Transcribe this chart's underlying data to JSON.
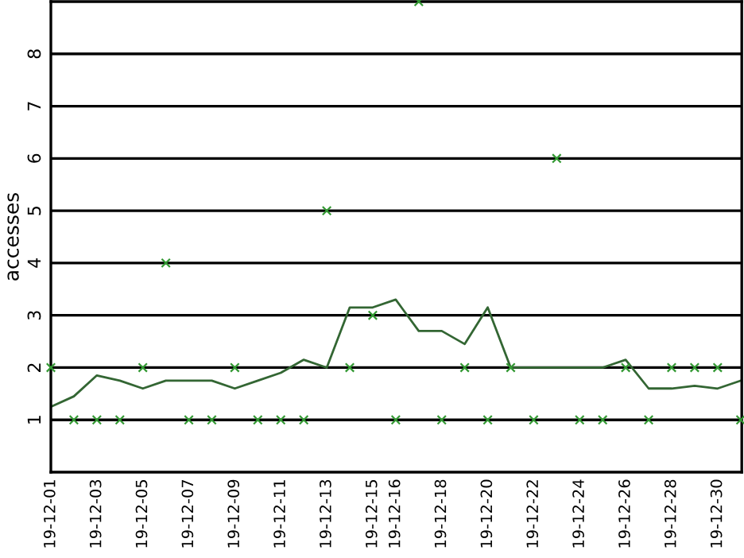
{
  "chart_data": {
    "type": "scatter",
    "ylabel": "accesses",
    "categories": [
      "19-12-01",
      null,
      "19-12-03",
      null,
      "19-12-05",
      null,
      "19-12-07",
      null,
      "19-12-09",
      null,
      "19-12-11",
      null,
      "19-12-13",
      null,
      "19-12-15",
      "19-12-16",
      null,
      "19-12-18",
      null,
      "19-12-20",
      null,
      "19-12-22",
      null,
      "19-12-24",
      null,
      "19-12-26",
      null,
      "19-12-28",
      null,
      "19-12-30",
      null
    ],
    "series": [
      {
        "color": "#339933",
        "marker": "cross",
        "values": [
          2,
          1,
          1,
          1,
          2,
          4,
          1,
          1,
          2,
          1,
          1,
          1,
          5,
          2,
          3,
          1,
          9,
          1,
          2,
          1,
          2,
          1,
          6,
          1,
          1,
          2,
          1,
          2,
          2,
          2,
          1
        ]
      },
      {
        "type": "line",
        "color": "#336633",
        "marker": "none",
        "line_style": "solid",
        "values": [
          1.25,
          1.45,
          1.85,
          1.75,
          1.6,
          1.75,
          1.75,
          1.75,
          1.6,
          1.75,
          1.9,
          2.15,
          2.0,
          3.15,
          3.15,
          3.3,
          2.7,
          2.7,
          2.45,
          3.15,
          2.0,
          2.0,
          2.0,
          2.0,
          2.0,
          2.15,
          1.6,
          1.6,
          1.65,
          1.6,
          1.75
        ]
      }
    ],
    "ylim": [
      0,
      9
    ],
    "yticks": [
      1,
      2,
      3,
      4,
      5,
      6,
      7,
      8
    ],
    "grid": "y"
  }
}
